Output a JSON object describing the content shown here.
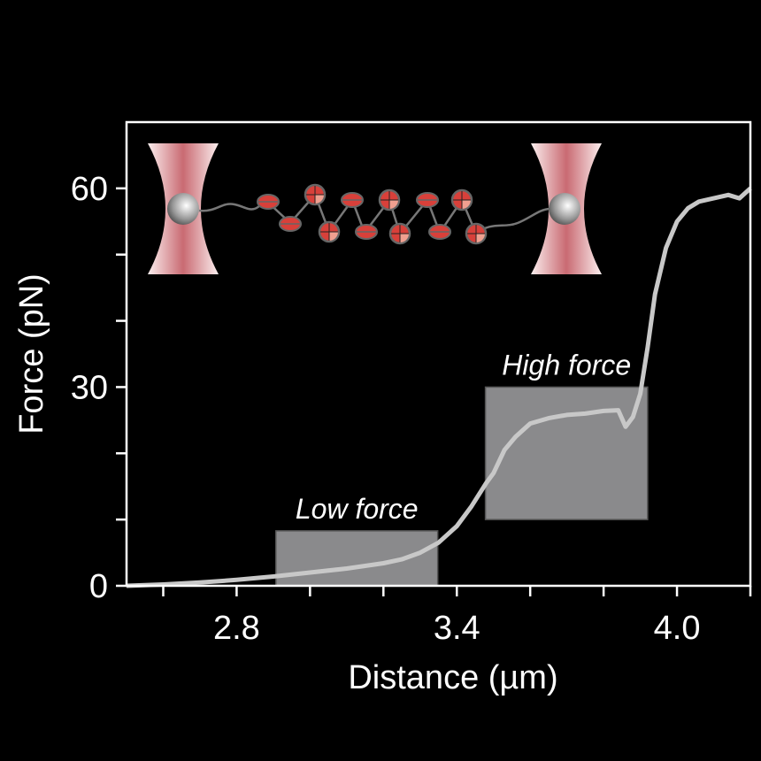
{
  "chart_data": {
    "type": "line",
    "title": "",
    "xlabel": "Distance (µm)",
    "ylabel": "Force (pN)",
    "xlim": [
      2.5,
      4.2
    ],
    "ylim": [
      0,
      70
    ],
    "xticks": [
      2.6,
      2.8,
      3.0,
      3.2,
      3.4,
      3.6,
      3.8,
      4.0,
      4.2
    ],
    "xtick_labels": {
      "2.8": "2.8",
      "3.4": "3.4",
      "4.0": "4.0"
    },
    "yticks": [
      0,
      10,
      20,
      30,
      40,
      50,
      60
    ],
    "ytick_labels": {
      "0": "0",
      "30": "30",
      "60": "60"
    },
    "grid": false,
    "colors": {
      "background": "#000000",
      "axis": "#ffffff",
      "curve": "#c8c8c8",
      "box": "#8a8a8c",
      "trap": "#c96a72",
      "nucleosome": "#d8403a"
    },
    "series": [
      {
        "x": [
          2.5,
          2.6,
          2.7,
          2.8,
          2.9,
          3.0,
          3.1,
          3.2,
          3.25,
          3.3,
          3.35,
          3.4,
          3.44,
          3.48,
          3.5,
          3.53,
          3.56,
          3.6,
          3.65,
          3.7,
          3.75,
          3.8,
          3.84,
          3.86,
          3.88,
          3.9,
          3.92,
          3.94,
          3.97,
          4.0,
          4.03,
          4.06,
          4.1,
          4.14,
          4.17,
          4.2
        ],
        "y": [
          0,
          0.2,
          0.5,
          0.9,
          1.4,
          2.0,
          2.6,
          3.4,
          4.0,
          5.0,
          6.5,
          9.0,
          12.0,
          15.5,
          17.0,
          20.5,
          22.5,
          24.5,
          25.3,
          25.8,
          26.0,
          26.4,
          26.5,
          24.0,
          25.5,
          29.0,
          36.0,
          44.0,
          51.0,
          55.0,
          57.0,
          58.0,
          58.5,
          59.0,
          58.5,
          60.0
        ]
      }
    ],
    "annotations": [
      {
        "label": "Low force",
        "x_range": [
          2.907,
          3.348
        ],
        "y_range": [
          0,
          8.3
        ]
      },
      {
        "label": "High force",
        "x_range": [
          3.478,
          3.92
        ],
        "y_range": [
          10,
          30
        ]
      }
    ]
  }
}
